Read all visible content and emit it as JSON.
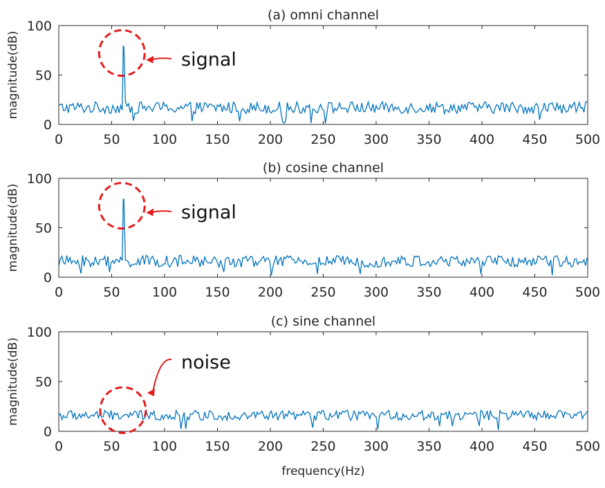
{
  "chart_data": [
    {
      "type": "line",
      "title": "(a) omni channel",
      "xlabel": "",
      "ylabel": "magnitude(dB)",
      "xlim": [
        0,
        500
      ],
      "ylim": [
        0,
        100
      ],
      "xticks": [
        0,
        50,
        100,
        150,
        200,
        250,
        300,
        350,
        400,
        450,
        500
      ],
      "yticks": [
        0,
        50,
        100
      ],
      "grid": false,
      "series_color": "#0072BD",
      "noise": {
        "mean": 17,
        "spread": 6,
        "dip_min": 1
      },
      "peak": {
        "x": 61,
        "y": 79
      },
      "annotation": {
        "text": "signal",
        "target_x": 61,
        "target_y": 73,
        "color": "#e31a1c"
      }
    },
    {
      "type": "line",
      "title": "(b) cosine channel",
      "xlabel": "",
      "ylabel": "magnitude(dB)",
      "xlim": [
        0,
        500
      ],
      "ylim": [
        0,
        100
      ],
      "xticks": [
        0,
        50,
        100,
        150,
        200,
        250,
        300,
        350,
        400,
        450,
        500
      ],
      "yticks": [
        0,
        50,
        100
      ],
      "grid": false,
      "series_color": "#0072BD",
      "noise": {
        "mean": 16,
        "spread": 6,
        "dip_min": 1
      },
      "peak": {
        "x": 61,
        "y": 79
      },
      "annotation": {
        "text": "signal",
        "target_x": 61,
        "target_y": 73,
        "color": "#e31a1c"
      }
    },
    {
      "type": "line",
      "title": "(c) sine channel",
      "xlabel": "frequency(Hz)",
      "ylabel": "magnitude(dB)",
      "xlim": [
        0,
        500
      ],
      "ylim": [
        0,
        100
      ],
      "xticks": [
        0,
        50,
        100,
        150,
        200,
        250,
        300,
        350,
        400,
        450,
        500
      ],
      "yticks": [
        0,
        50,
        100
      ],
      "grid": false,
      "series_color": "#0072BD",
      "noise": {
        "mean": 16,
        "spread": 5,
        "dip_min": 1
      },
      "peak": null,
      "annotation": {
        "text": "noise",
        "target_x": 62,
        "target_y": 22,
        "color": "#e31a1c"
      }
    }
  ]
}
